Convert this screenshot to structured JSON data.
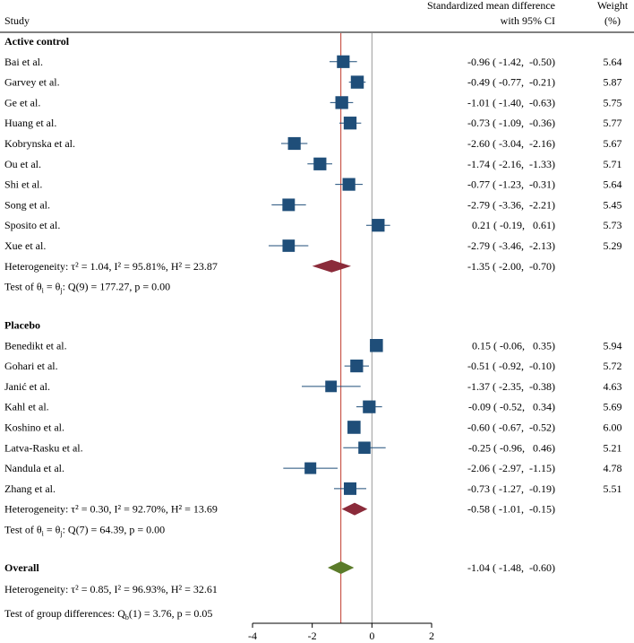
{
  "chart_data": {
    "type": "forest",
    "header": {
      "study": "Study",
      "effect_line1": "Standardized mean difference",
      "effect_line2": "with 95% CI",
      "weight_line1": "Weight",
      "weight_line2": "(%)"
    },
    "xaxis": {
      "ticks": [
        -4,
        -2,
        0,
        2
      ],
      "tick_labels": [
        "-4",
        "-2",
        "0",
        "2"
      ],
      "xlim": [
        -4,
        2
      ]
    },
    "overall_line": -1.04,
    "null_line": 0,
    "colors": {
      "study_marker": "#1f4e79",
      "subgroup_diamond": "#8b2b3a",
      "overall_diamond": "#5b7b2a",
      "overall_line": "#c0392b",
      "null_line": "#999999",
      "ci_line": "#1f4e79"
    },
    "groups": [
      {
        "name": "Active control",
        "studies": [
          {
            "label": "Bai et al.",
            "est": -0.96,
            "lo": -1.42,
            "hi": -0.5,
            "ci_text": "-0.96 ( -1.42,  -0.50)",
            "weight": "5.64"
          },
          {
            "label": "Garvey et al.",
            "est": -0.49,
            "lo": -0.77,
            "hi": -0.21,
            "ci_text": "-0.49 ( -0.77,  -0.21)",
            "weight": "5.87"
          },
          {
            "label": "Ge et al.",
            "est": -1.01,
            "lo": -1.4,
            "hi": -0.63,
            "ci_text": "-1.01 ( -1.40,  -0.63)",
            "weight": "5.75"
          },
          {
            "label": "Huang et al.",
            "est": -0.73,
            "lo": -1.09,
            "hi": -0.36,
            "ci_text": "-0.73 ( -1.09,  -0.36)",
            "weight": "5.77"
          },
          {
            "label": "Kobrynska et al.",
            "est": -2.6,
            "lo": -3.04,
            "hi": -2.16,
            "ci_text": "-2.60 ( -3.04,  -2.16)",
            "weight": "5.67"
          },
          {
            "label": "Ou et al.",
            "est": -1.74,
            "lo": -2.16,
            "hi": -1.33,
            "ci_text": "-1.74 ( -2.16,  -1.33)",
            "weight": "5.71"
          },
          {
            "label": "Shi et al.",
            "est": -0.77,
            "lo": -1.23,
            "hi": -0.31,
            "ci_text": "-0.77 ( -1.23,  -0.31)",
            "weight": "5.64"
          },
          {
            "label": "Song et al.",
            "est": -2.79,
            "lo": -3.36,
            "hi": -2.21,
            "ci_text": "-2.79 ( -3.36,  -2.21)",
            "weight": "5.45"
          },
          {
            "label": "Sposito et al.",
            "est": 0.21,
            "lo": -0.19,
            "hi": 0.61,
            "ci_text": " 0.21 ( -0.19,   0.61)",
            "weight": "5.73"
          },
          {
            "label": "Xue et al.",
            "est": -2.79,
            "lo": -3.46,
            "hi": -2.13,
            "ci_text": "-2.79 ( -3.46,  -2.13)",
            "weight": "5.29"
          }
        ],
        "summary": {
          "label": "Heterogeneity: τ² = 1.04, I² = 95.81%, H² = 23.87",
          "est": -1.35,
          "lo": -2.0,
          "hi": -0.7,
          "ci_text": "-1.35 ( -2.00,  -0.70)"
        },
        "test": "Test of θi = θj: Q(9) = 177.27, p = 0.00"
      },
      {
        "name": "Placebo",
        "studies": [
          {
            "label": "Benedikt et al.",
            "est": 0.15,
            "lo": -0.06,
            "hi": 0.35,
            "ci_text": " 0.15 ( -0.06,   0.35)",
            "weight": "5.94"
          },
          {
            "label": "Gohari et al.",
            "est": -0.51,
            "lo": -0.92,
            "hi": -0.1,
            "ci_text": "-0.51 ( -0.92,  -0.10)",
            "weight": "5.72"
          },
          {
            "label": "Janić et al.",
            "est": -1.37,
            "lo": -2.35,
            "hi": -0.38,
            "ci_text": "-1.37 ( -2.35,  -0.38)",
            "weight": "4.63"
          },
          {
            "label": "Kahl et al.",
            "est": -0.09,
            "lo": -0.52,
            "hi": 0.34,
            "ci_text": "-0.09 ( -0.52,   0.34)",
            "weight": "5.69"
          },
          {
            "label": "Koshino et al.",
            "est": -0.6,
            "lo": -0.67,
            "hi": -0.52,
            "ci_text": "-0.60 ( -0.67,  -0.52)",
            "weight": "6.00"
          },
          {
            "label": "Latva-Rasku et al.",
            "est": -0.25,
            "lo": -0.96,
            "hi": 0.46,
            "ci_text": "-0.25 ( -0.96,   0.46)",
            "weight": "5.21"
          },
          {
            "label": "Nandula et al.",
            "est": -2.06,
            "lo": -2.97,
            "hi": -1.15,
            "ci_text": "-2.06 ( -2.97,  -1.15)",
            "weight": "4.78"
          },
          {
            "label": "Zhang et al.",
            "est": -0.73,
            "lo": -1.27,
            "hi": -0.19,
            "ci_text": "-0.73 ( -1.27,  -0.19)",
            "weight": "5.51"
          }
        ],
        "summary": {
          "label": "Heterogeneity: τ² = 0.30, I² = 92.70%, H² = 13.69",
          "est": -0.58,
          "lo": -1.01,
          "hi": -0.15,
          "ci_text": "-0.58 ( -1.01,  -0.15)"
        },
        "test": "Test of θi = θj: Q(7) = 64.39, p = 0.00"
      }
    ],
    "overall": {
      "name": "Overall",
      "est": -1.04,
      "lo": -1.48,
      "hi": -0.6,
      "ci_text": "-1.04 ( -1.48,  -0.60)",
      "heterogeneity": "Heterogeneity: τ² = 0.85, I² = 96.93%, H² = 32.61",
      "group_test": "Test of group differences: Qb(1) = 3.76, p = 0.05"
    }
  }
}
